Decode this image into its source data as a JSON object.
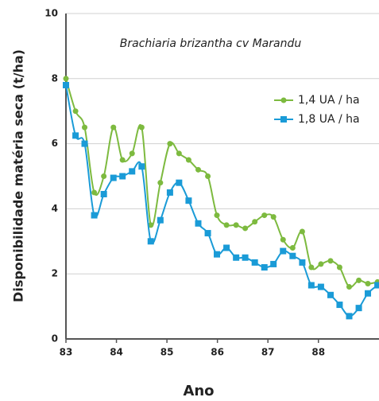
{
  "chart_data": {
    "type": "line",
    "title": "Brachiaria brizantha  cv Marandu",
    "x_label": "Ano",
    "y_label": "Disponibilidade matéria seca (t/ha)",
    "x": [
      83,
      83.19,
      83.37,
      83.56,
      83.75,
      83.94,
      84.12,
      84.31,
      84.5,
      84.68,
      84.87,
      85.06,
      85.24,
      85.43,
      85.62,
      85.81,
      85.99,
      86.18,
      86.37,
      86.55,
      86.74,
      86.93,
      87.11,
      87.3,
      87.49,
      87.68,
      87.86,
      88.05,
      88.24,
      88.42,
      88.61,
      88.8,
      88.98,
      89.17
    ],
    "series": [
      {
        "name": "1,4 UA / ha",
        "color": "#7dba3f",
        "marker": "circle",
        "values": [
          8.0,
          7.0,
          6.5,
          4.5,
          5.0,
          6.5,
          5.5,
          5.7,
          6.5,
          3.5,
          4.8,
          6.0,
          5.7,
          5.5,
          5.2,
          5.0,
          3.8,
          3.5,
          3.5,
          3.4,
          3.6,
          3.8,
          3.75,
          3.05,
          2.8,
          3.3,
          2.2,
          2.3,
          2.4,
          2.2,
          1.6,
          1.8,
          1.7,
          1.75
        ]
      },
      {
        "name": "1,8 UA / ha",
        "color": "#1a9bd7",
        "marker": "square",
        "values": [
          7.8,
          6.25,
          6.0,
          3.8,
          4.45,
          4.95,
          5.0,
          5.15,
          5.3,
          3.0,
          3.65,
          4.5,
          4.8,
          4.25,
          3.55,
          3.25,
          2.6,
          2.8,
          2.5,
          2.5,
          2.35,
          2.2,
          2.3,
          2.7,
          2.55,
          2.35,
          1.65,
          1.6,
          1.35,
          1.05,
          0.7,
          0.95,
          1.4,
          1.65
        ]
      }
    ],
    "xlim": [
      83,
      89.2
    ],
    "xticks": [
      83,
      84,
      85,
      86,
      87,
      88
    ],
    "ylim": [
      0,
      10
    ],
    "yticks": [
      0,
      2,
      4,
      6,
      8,
      10
    ],
    "grid": true,
    "legend": "upper right"
  }
}
